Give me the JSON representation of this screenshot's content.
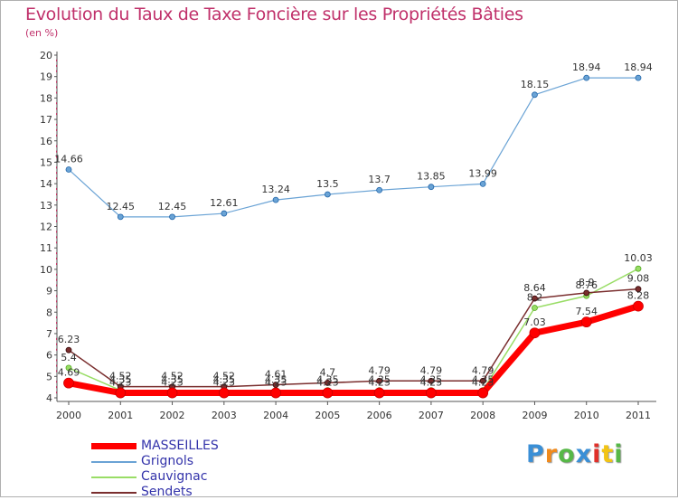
{
  "chart_data": {
    "type": "line",
    "title": "Evolution du Taux de Taxe Foncière sur les Propriétés Bâties",
    "subtitle": "(en %)",
    "xlabel": "",
    "ylabel": "",
    "ylim": [
      4,
      20
    ],
    "yticks": [
      4,
      5,
      6,
      7,
      8,
      9,
      10,
      11,
      12,
      13,
      14,
      15,
      16,
      17,
      18,
      19,
      20
    ],
    "categories": [
      "2000",
      "2001",
      "2002",
      "2003",
      "2004",
      "2005",
      "2006",
      "2007",
      "2008",
      "2009",
      "2010",
      "2011"
    ],
    "grid": false,
    "legend_position": "bottom-left",
    "series": [
      {
        "name": "MASSEILLES",
        "color": "#ff0000",
        "values": [
          4.69,
          4.23,
          4.23,
          4.23,
          4.23,
          4.23,
          4.23,
          4.23,
          4.23,
          7.03,
          7.54,
          8.28
        ],
        "labels": [
          "4.69",
          "4.23",
          "4.23",
          "4.23",
          "4.23",
          "4.23",
          "4.23",
          "4.23",
          "4.23",
          "7.03",
          "7.54",
          "8.28"
        ]
      },
      {
        "name": "Grignols",
        "color": "#6aa3d5",
        "values": [
          14.66,
          12.45,
          12.45,
          12.61,
          13.24,
          13.5,
          13.7,
          13.85,
          13.99,
          18.15,
          18.94,
          18.94
        ],
        "labels": [
          "14.66",
          "12.45",
          "12.45",
          "12.61",
          "13.24",
          "13.5",
          "13.7",
          "13.85",
          "13.99",
          "18.15",
          "18.94",
          "18.94"
        ]
      },
      {
        "name": "Cauvignac",
        "color": "#99dd66",
        "values": [
          5.4,
          4.35,
          4.35,
          4.35,
          4.35,
          4.35,
          4.35,
          4.35,
          4.35,
          8.2,
          8.76,
          10.03
        ],
        "labels": [
          "5.4",
          "4.35",
          "4.35",
          "4.35",
          "4.35",
          "4.35",
          "4.35",
          "4.35",
          "4.35",
          "8.2",
          "8.76",
          "10.03"
        ]
      },
      {
        "name": "Sendets",
        "color": "#7a2e2e",
        "values": [
          6.23,
          4.52,
          4.52,
          4.52,
          4.61,
          4.7,
          4.79,
          4.79,
          4.79,
          8.64,
          8.9,
          9.08
        ],
        "labels": [
          "6.23",
          "4.52",
          "4.52",
          "4.52",
          "4.61",
          "4.7",
          "4.79",
          "4.79",
          "4.79",
          "8.64",
          "8.9",
          "9.08"
        ]
      }
    ]
  },
  "legend": {
    "items": [
      "MASSEILLES",
      "Grignols",
      "Cauvignac",
      "Sendets"
    ]
  },
  "logo": {
    "letters": [
      "P",
      "r",
      "o",
      "x",
      "i",
      "t",
      "i"
    ],
    "colors": [
      "#3a8fd6",
      "#f08a1c",
      "#57b847",
      "#3a8fd6",
      "#e0302a",
      "#f2c414",
      "#57b847"
    ]
  }
}
